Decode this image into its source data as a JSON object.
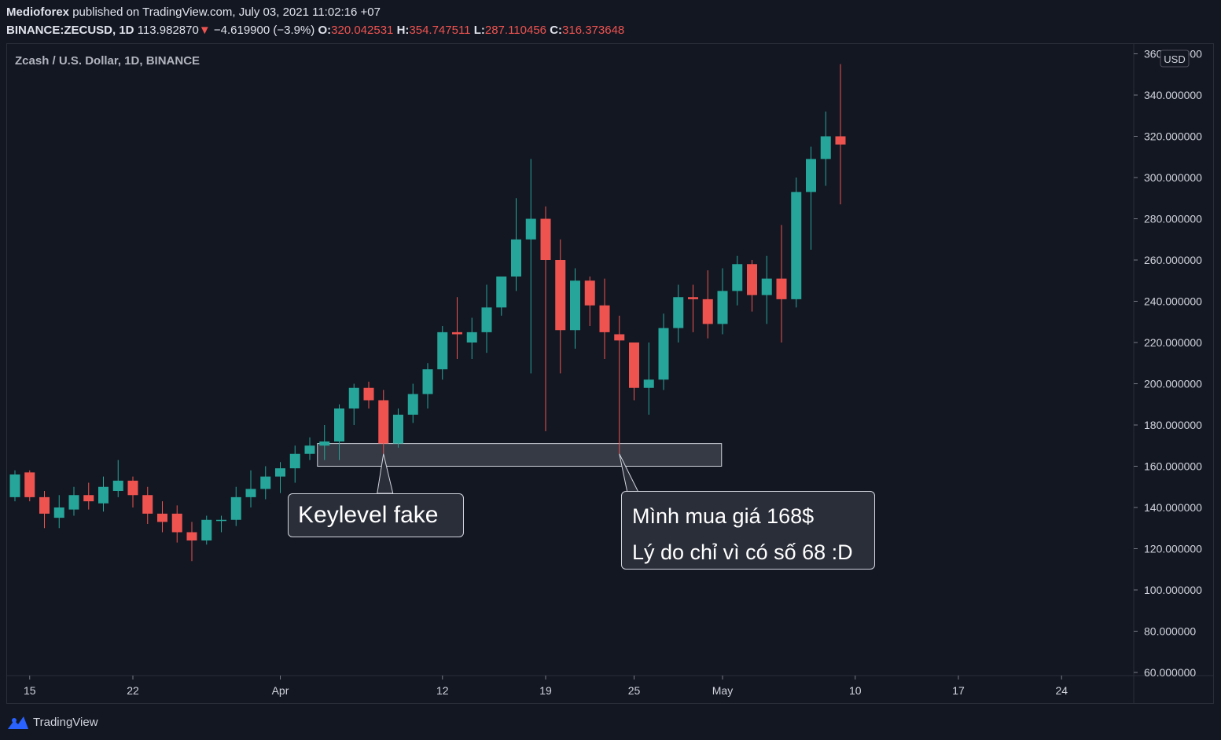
{
  "header": {
    "author": "Medioforex",
    "published": "published on TradingView.com, July 03, 2021 11:02:16 +07",
    "symbol": "BINANCE:ZECUSD, 1D",
    "last": "113.982870",
    "change_arrow": "▼",
    "change": "−4.619900 (−3.9%)",
    "o_label": "O:",
    "o": "320.042531",
    "h_label": "H:",
    "h": "354.747511",
    "l_label": "L:",
    "l": "287.110456",
    "c_label": "C:",
    "c": "316.373648"
  },
  "footer": {
    "brand": "TradingView",
    "logo_icon": "tradingview-logo-icon"
  },
  "colors": {
    "up": "#26a69a",
    "down": "#ef5350",
    "background": "#131722",
    "grid": "#2a2e39",
    "text": "#d1d4dc"
  },
  "annotations": {
    "keylevel": "Keylevel fake",
    "buy_line1": "Mình mua giá 168$",
    "buy_line2": "Lý do chỉ vì có số 68 :D"
  },
  "chart_data": {
    "type": "candlestick",
    "title": "Zcash / U.S. Dollar, 1D, BINANCE",
    "currency": "USD",
    "ylim": [
      60,
      360
    ],
    "y_ticks": [
      "60.000000",
      "80.000000",
      "100.000000",
      "120.000000",
      "140.000000",
      "160.000000",
      "180.000000",
      "200.000000",
      "220.000000",
      "240.000000",
      "260.000000",
      "280.000000",
      "300.000000",
      "320.000000",
      "340.000000",
      "360.000000"
    ],
    "x_ticks": [
      {
        "label": "15",
        "date": "2021-03-15"
      },
      {
        "label": "22",
        "date": "2021-03-22"
      },
      {
        "label": "Apr",
        "date": "2021-04-01"
      },
      {
        "label": "12",
        "date": "2021-04-12"
      },
      {
        "label": "19",
        "date": "2021-04-19"
      },
      {
        "label": "25",
        "date": "2021-04-25"
      },
      {
        "label": "May",
        "date": "2021-05-01"
      },
      {
        "label": "10",
        "date": "2021-05-10"
      },
      {
        "label": "17",
        "date": "2021-05-17"
      },
      {
        "label": "24",
        "date": "2021-05-24"
      }
    ],
    "x_start": "2021-03-14",
    "x_end": "2021-05-29",
    "zone": {
      "from": "2021-04-04",
      "to": "2021-05-02",
      "low": 160,
      "high": 171
    },
    "candles": [
      {
        "date": "2021-03-14",
        "o": 145,
        "h": 158,
        "l": 143,
        "c": 156
      },
      {
        "date": "2021-03-15",
        "o": 157,
        "h": 158,
        "l": 143,
        "c": 145
      },
      {
        "date": "2021-03-16",
        "o": 145,
        "h": 148,
        "l": 130,
        "c": 137
      },
      {
        "date": "2021-03-17",
        "o": 135,
        "h": 146,
        "l": 130,
        "c": 140
      },
      {
        "date": "2021-03-18",
        "o": 139,
        "h": 150,
        "l": 136,
        "c": 146
      },
      {
        "date": "2021-03-19",
        "o": 146,
        "h": 152,
        "l": 139,
        "c": 143
      },
      {
        "date": "2021-03-20",
        "o": 142,
        "h": 155,
        "l": 138,
        "c": 150
      },
      {
        "date": "2021-03-21",
        "o": 148,
        "h": 163,
        "l": 145,
        "c": 153
      },
      {
        "date": "2021-03-22",
        "o": 153,
        "h": 155,
        "l": 140,
        "c": 146
      },
      {
        "date": "2021-03-23",
        "o": 146,
        "h": 150,
        "l": 132,
        "c": 137
      },
      {
        "date": "2021-03-24",
        "o": 137,
        "h": 143,
        "l": 128,
        "c": 133
      },
      {
        "date": "2021-03-25",
        "o": 137,
        "h": 141,
        "l": 123,
        "c": 128
      },
      {
        "date": "2021-03-26",
        "o": 128,
        "h": 133,
        "l": 114,
        "c": 124
      },
      {
        "date": "2021-03-27",
        "o": 124,
        "h": 136,
        "l": 122,
        "c": 134
      },
      {
        "date": "2021-03-28",
        "o": 134,
        "h": 136,
        "l": 128,
        "c": 134
      },
      {
        "date": "2021-03-29",
        "o": 134,
        "h": 150,
        "l": 131,
        "c": 145
      },
      {
        "date": "2021-03-30",
        "o": 145,
        "h": 158,
        "l": 140,
        "c": 149
      },
      {
        "date": "2021-03-31",
        "o": 149,
        "h": 160,
        "l": 144,
        "c": 155
      },
      {
        "date": "2021-04-01",
        "o": 155,
        "h": 162,
        "l": 147,
        "c": 159
      },
      {
        "date": "2021-04-02",
        "o": 159,
        "h": 170,
        "l": 152,
        "c": 166
      },
      {
        "date": "2021-04-03",
        "o": 166,
        "h": 174,
        "l": 163,
        "c": 170
      },
      {
        "date": "2021-04-04",
        "o": 170,
        "h": 180,
        "l": 163,
        "c": 172
      },
      {
        "date": "2021-04-05",
        "o": 172,
        "h": 190,
        "l": 163,
        "c": 188
      },
      {
        "date": "2021-04-06",
        "o": 188,
        "h": 200,
        "l": 180,
        "c": 198
      },
      {
        "date": "2021-04-07",
        "o": 198,
        "h": 201,
        "l": 188,
        "c": 192
      },
      {
        "date": "2021-04-08",
        "o": 192,
        "h": 197,
        "l": 166,
        "c": 171
      },
      {
        "date": "2021-04-09",
        "o": 171,
        "h": 188,
        "l": 169,
        "c": 185
      },
      {
        "date": "2021-04-10",
        "o": 185,
        "h": 200,
        "l": 181,
        "c": 195
      },
      {
        "date": "2021-04-11",
        "o": 195,
        "h": 210,
        "l": 188,
        "c": 207
      },
      {
        "date": "2021-04-12",
        "o": 207,
        "h": 228,
        "l": 202,
        "c": 225
      },
      {
        "date": "2021-04-13",
        "o": 225,
        "h": 242,
        "l": 212,
        "c": 224
      },
      {
        "date": "2021-04-14",
        "o": 220,
        "h": 232,
        "l": 212,
        "c": 225
      },
      {
        "date": "2021-04-15",
        "o": 225,
        "h": 248,
        "l": 215,
        "c": 237
      },
      {
        "date": "2021-04-16",
        "o": 237,
        "h": 252,
        "l": 233,
        "c": 252
      },
      {
        "date": "2021-04-17",
        "o": 252,
        "h": 290,
        "l": 245,
        "c": 270
      },
      {
        "date": "2021-04-18",
        "o": 270,
        "h": 309,
        "l": 205,
        "c": 280
      },
      {
        "date": "2021-04-19",
        "o": 280,
        "h": 286,
        "l": 177,
        "c": 260
      },
      {
        "date": "2021-04-20",
        "o": 260,
        "h": 270,
        "l": 205,
        "c": 226
      },
      {
        "date": "2021-04-21",
        "o": 226,
        "h": 256,
        "l": 217,
        "c": 250
      },
      {
        "date": "2021-04-22",
        "o": 250,
        "h": 252,
        "l": 228,
        "c": 238
      },
      {
        "date": "2021-04-23",
        "o": 238,
        "h": 251,
        "l": 212,
        "c": 225
      },
      {
        "date": "2021-04-24",
        "o": 224,
        "h": 233,
        "l": 166,
        "c": 221
      },
      {
        "date": "2021-04-25",
        "o": 220,
        "h": 220,
        "l": 192,
        "c": 198
      },
      {
        "date": "2021-04-26",
        "o": 198,
        "h": 220,
        "l": 185,
        "c": 202
      },
      {
        "date": "2021-04-27",
        "o": 202,
        "h": 234,
        "l": 197,
        "c": 227
      },
      {
        "date": "2021-04-28",
        "o": 227,
        "h": 248,
        "l": 220,
        "c": 242
      },
      {
        "date": "2021-04-29",
        "o": 242,
        "h": 248,
        "l": 225,
        "c": 241
      },
      {
        "date": "2021-04-30",
        "o": 241,
        "h": 255,
        "l": 222,
        "c": 229
      },
      {
        "date": "2021-05-01",
        "o": 229,
        "h": 256,
        "l": 224,
        "c": 245
      },
      {
        "date": "2021-05-02",
        "o": 245,
        "h": 262,
        "l": 238,
        "c": 258
      },
      {
        "date": "2021-05-03",
        "o": 258,
        "h": 260,
        "l": 235,
        "c": 243
      },
      {
        "date": "2021-05-04",
        "o": 243,
        "h": 262,
        "l": 229,
        "c": 251
      },
      {
        "date": "2021-05-05",
        "o": 251,
        "h": 277,
        "l": 220,
        "c": 241
      },
      {
        "date": "2021-05-06",
        "o": 241,
        "h": 300,
        "l": 237,
        "c": 293
      },
      {
        "date": "2021-05-07",
        "o": 293,
        "h": 315,
        "l": 265,
        "c": 309
      },
      {
        "date": "2021-05-08",
        "o": 309,
        "h": 332,
        "l": 296,
        "c": 320
      },
      {
        "date": "2021-05-09",
        "o": 320,
        "h": 355,
        "l": 287,
        "c": 316
      }
    ]
  }
}
